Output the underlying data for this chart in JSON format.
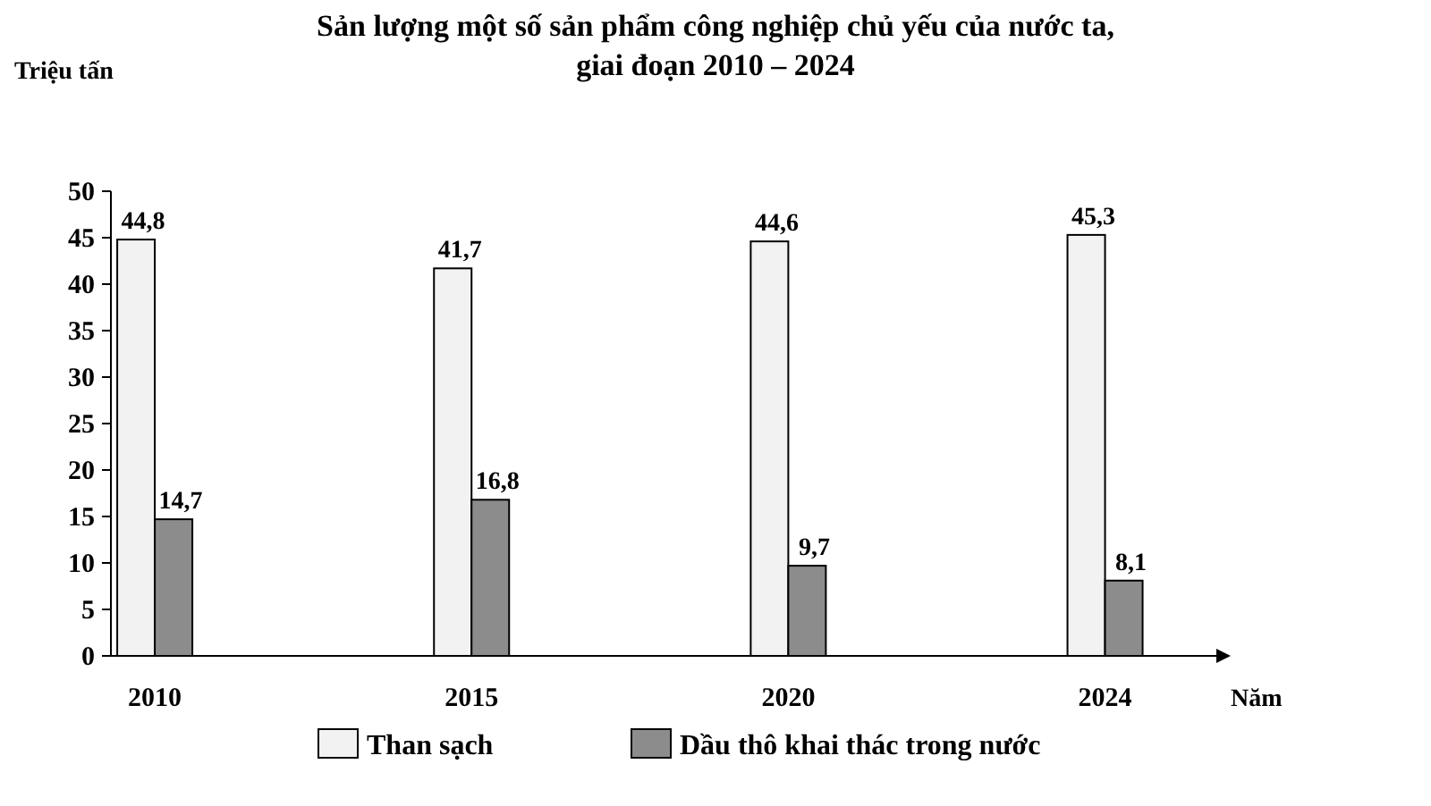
{
  "chart_data": {
    "type": "bar",
    "title": "Sản lượng một số sản phẩm công nghiệp chủ yếu của nước ta,\ngiai đoạn 2010 – 2024",
    "ylabel": "Triệu tấn",
    "xlabel": "Năm",
    "categories": [
      "2010",
      "2015",
      "2020",
      "2024"
    ],
    "series": [
      {
        "name": "Than sạch",
        "color": "#f2f2f2",
        "values": [
          44.8,
          41.7,
          44.6,
          45.3
        ],
        "value_labels": [
          "44,8",
          "41,7",
          "44,6",
          "45,3"
        ]
      },
      {
        "name": "Dầu thô khai thác trong nước",
        "color": "#8c8c8c",
        "values": [
          14.7,
          16.8,
          9.7,
          8.1
        ],
        "value_labels": [
          "14,7",
          "16,8",
          "9,7",
          "8,1"
        ]
      }
    ],
    "ylim": [
      0,
      50
    ],
    "yticks": [
      0,
      5,
      10,
      15,
      20,
      25,
      30,
      35,
      40,
      45,
      50
    ],
    "grid": false,
    "legend": "bottom"
  }
}
